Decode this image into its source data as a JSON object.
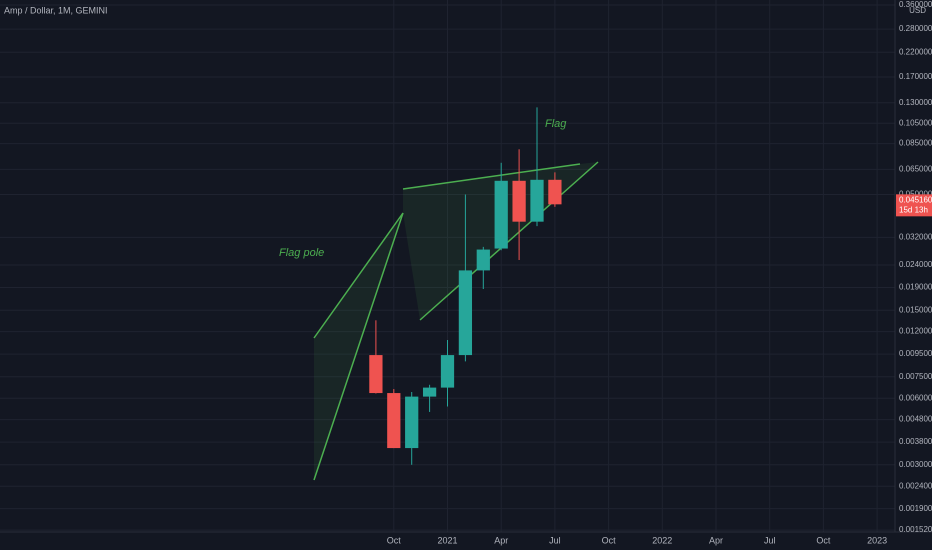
{
  "chart_data": {
    "type": "candlestick",
    "title": "Amp / Dollar, 1M, GEMINI",
    "y_axis_label": "USD",
    "x": [
      "2020-09",
      "2020-10",
      "2020-11",
      "2020-12",
      "2021-01",
      "2021-02",
      "2021-03",
      "2021-04",
      "2021-05",
      "2021-06",
      "2021-07"
    ],
    "series": [
      {
        "open": [
          0.0094,
          0.00633,
          0.00357,
          0.0061,
          0.0067,
          0.0094,
          0.0227,
          0.0285,
          0.0577,
          0.0377,
          0.0583
        ],
        "high": [
          0.0135,
          0.0066,
          0.0064,
          0.0069,
          0.011,
          0.05,
          0.029,
          0.0696,
          0.0801,
          0.124,
          0.063
        ],
        "low": [
          0.0063,
          0.00357,
          0.003,
          0.0052,
          0.0055,
          0.0088,
          0.0187,
          0.028,
          0.0253,
          0.036,
          0.044
        ],
        "close": [
          0.00633,
          0.00357,
          0.0061,
          0.0067,
          0.0094,
          0.0227,
          0.0282,
          0.0577,
          0.0377,
          0.0583,
          0.04516
        ],
        "up_color": "#26a69a",
        "down_color": "#ef5350"
      }
    ],
    "log_scale": true,
    "grid": true,
    "ylim": [
      0.00149,
      0.379
    ],
    "yticks": [
      {
        "value": 0.36,
        "label": "0.360000"
      },
      {
        "value": 0.28,
        "label": "0.280000"
      },
      {
        "value": 0.22,
        "label": "0.220000"
      },
      {
        "value": 0.17,
        "label": "0.170000"
      },
      {
        "value": 0.13,
        "label": "0.130000"
      },
      {
        "value": 0.105,
        "label": "0.105000"
      },
      {
        "value": 0.085,
        "label": "0.085000"
      },
      {
        "value": 0.065,
        "label": "0.065000"
      },
      {
        "value": 0.05,
        "label": "0.050000"
      },
      {
        "value": 0.032,
        "label": "0.032000"
      },
      {
        "value": 0.024,
        "label": "0.024000"
      },
      {
        "value": 0.019,
        "label": "0.019000"
      },
      {
        "value": 0.015,
        "label": "0.015000"
      },
      {
        "value": 0.012,
        "label": "0.012000"
      },
      {
        "value": 0.0095,
        "label": "0.009500"
      },
      {
        "value": 0.0075,
        "label": "0.007500"
      },
      {
        "value": 0.006,
        "label": "0.006000"
      },
      {
        "value": 0.0048,
        "label": "0.004800"
      },
      {
        "value": 0.0038,
        "label": "0.003800"
      },
      {
        "value": 0.003,
        "label": "0.003000"
      },
      {
        "value": 0.0024,
        "label": "0.002400"
      },
      {
        "value": 0.0019,
        "label": "0.001900"
      },
      {
        "value": 0.00152,
        "label": "0.001520"
      }
    ],
    "xlim": [
      "2018-12",
      "2023-02"
    ],
    "xticks": [
      {
        "value": "2020-10",
        "label": "Oct"
      },
      {
        "value": "2021-01",
        "label": "2021"
      },
      {
        "value": "2021-04",
        "label": "Apr"
      },
      {
        "value": "2021-07",
        "label": "Jul"
      },
      {
        "value": "2021-10",
        "label": "Oct"
      },
      {
        "value": "2022-01",
        "label": "2022"
      },
      {
        "value": "2022-04",
        "label": "Apr"
      },
      {
        "value": "2022-07",
        "label": "Jul"
      },
      {
        "value": "2022-10",
        "label": "Oct"
      },
      {
        "value": "2023-01",
        "label": "2023"
      }
    ],
    "last_price": {
      "value": 0.04516,
      "label": "0.045160"
    },
    "countdown": "15d 13h",
    "annotations": [
      "Flag pole",
      "Flag"
    ]
  }
}
